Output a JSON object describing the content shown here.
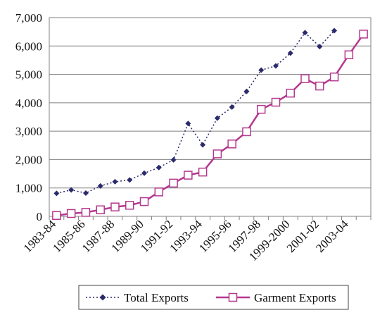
{
  "chart_data": {
    "type": "line",
    "categories": [
      "1983-84",
      "1984-85",
      "1985-86",
      "1986-87",
      "1987-88",
      "1988-89",
      "1989-90",
      "1990-91",
      "1991-92",
      "1992-93",
      "1993-94",
      "1994-95",
      "1995-96",
      "1996-97",
      "1997-98",
      "1998-99",
      "1999-2000",
      "2000-01",
      "2001-02",
      "2002-03",
      "2003-04",
      "2004-05"
    ],
    "x_tick_labels": [
      "1983-84",
      "",
      "1985-86",
      "",
      "1987-88",
      "",
      "1989-90",
      "",
      "1991-92",
      "",
      "1993-94",
      "",
      "1995-96",
      "",
      "1997-98",
      "",
      "1999-2000",
      "",
      "2001-02",
      "",
      "2003-04",
      ""
    ],
    "series": [
      {
        "name": "Total Exports",
        "color": "#2b2a6b",
        "line_style": "dotted",
        "marker": "diamond",
        "values": [
          810,
          930,
          820,
          1070,
          1220,
          1280,
          1520,
          1720,
          1990,
          3270,
          2520,
          3460,
          3850,
          4400,
          5150,
          5300,
          5750,
          6470,
          5980,
          6540,
          null,
          null
        ]
      },
      {
        "name": "Garment Exports",
        "color": "#b4388e",
        "line_style": "solid",
        "marker": "square",
        "values": [
          30,
          100,
          140,
          230,
          330,
          390,
          520,
          860,
          1170,
          1450,
          1560,
          2200,
          2550,
          2980,
          3770,
          4020,
          4340,
          4850,
          4590,
          4910,
          5690,
          6420
        ]
      }
    ],
    "yticks": [
      "0",
      "1,000",
      "2,000",
      "3,000",
      "4,000",
      "5,000",
      "6,000",
      "7,000"
    ],
    "ylim": [
      0,
      7000
    ],
    "grid": "horizontal",
    "legend_position": "bottom"
  }
}
